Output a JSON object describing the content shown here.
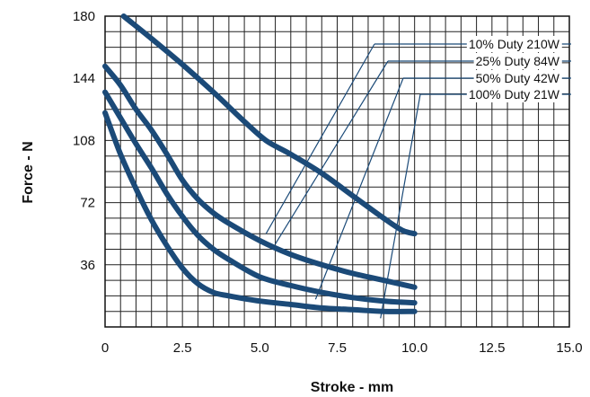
{
  "chart_data": {
    "type": "line",
    "title": "",
    "xlabel": "Stroke - mm",
    "ylabel": "Force - N",
    "xlim": [
      0,
      15
    ],
    "ylim": [
      0,
      180
    ],
    "xticks": [
      0,
      2.5,
      5,
      7.5,
      10,
      12.5,
      15
    ],
    "xtick_labels": [
      "0",
      "2.5",
      "5.0",
      "7.5",
      "10.0",
      "12.5",
      "15.0"
    ],
    "yticks": [
      36,
      72,
      108,
      144,
      180
    ],
    "ytick_labels": [
      "36",
      "72",
      "108",
      "144",
      "180"
    ],
    "grid": true,
    "legend_placement": "top-right",
    "series_color": "#1b4a78",
    "series": [
      {
        "name": "10% Duty 210W",
        "x": [
          0.6,
          1.5,
          2.5,
          3.5,
          4.5,
          5.2,
          6.0,
          7.0,
          8.0,
          9.0,
          9.6,
          10.0
        ],
        "y": [
          180,
          167,
          152,
          136,
          119,
          108,
          100,
          89,
          76,
          63,
          56,
          54
        ]
      },
      {
        "name": "25% Duty 84W",
        "x": [
          0,
          0.5,
          1.0,
          1.5,
          2.0,
          2.5,
          3.0,
          3.5,
          4.0,
          5.0,
          6.0,
          7.0,
          8.0,
          9.0,
          10.0
        ],
        "y": [
          151,
          140,
          126,
          114,
          100,
          85,
          74,
          66,
          60,
          50,
          42,
          36,
          31,
          27,
          23
        ]
      },
      {
        "name": "50% Duty 42W",
        "x": [
          0,
          0.5,
          1.0,
          1.5,
          2.0,
          2.5,
          3.0,
          3.5,
          4.0,
          5.0,
          6.0,
          7.0,
          8.0,
          9.0,
          10.0
        ],
        "y": [
          136,
          121,
          106,
          92,
          77,
          64,
          53,
          45,
          39,
          29,
          24,
          20,
          17,
          15,
          14
        ]
      },
      {
        "name": "100% Duty 21W",
        "x": [
          0,
          0.5,
          1.0,
          1.5,
          2.0,
          2.5,
          3.0,
          3.5,
          4.0,
          5.0,
          6.0,
          7.0,
          8.0,
          9.0,
          10.0
        ],
        "y": [
          124,
          100,
          80,
          62,
          47,
          34,
          25,
          20,
          18,
          15,
          13,
          11,
          10,
          9,
          9
        ]
      }
    ]
  }
}
